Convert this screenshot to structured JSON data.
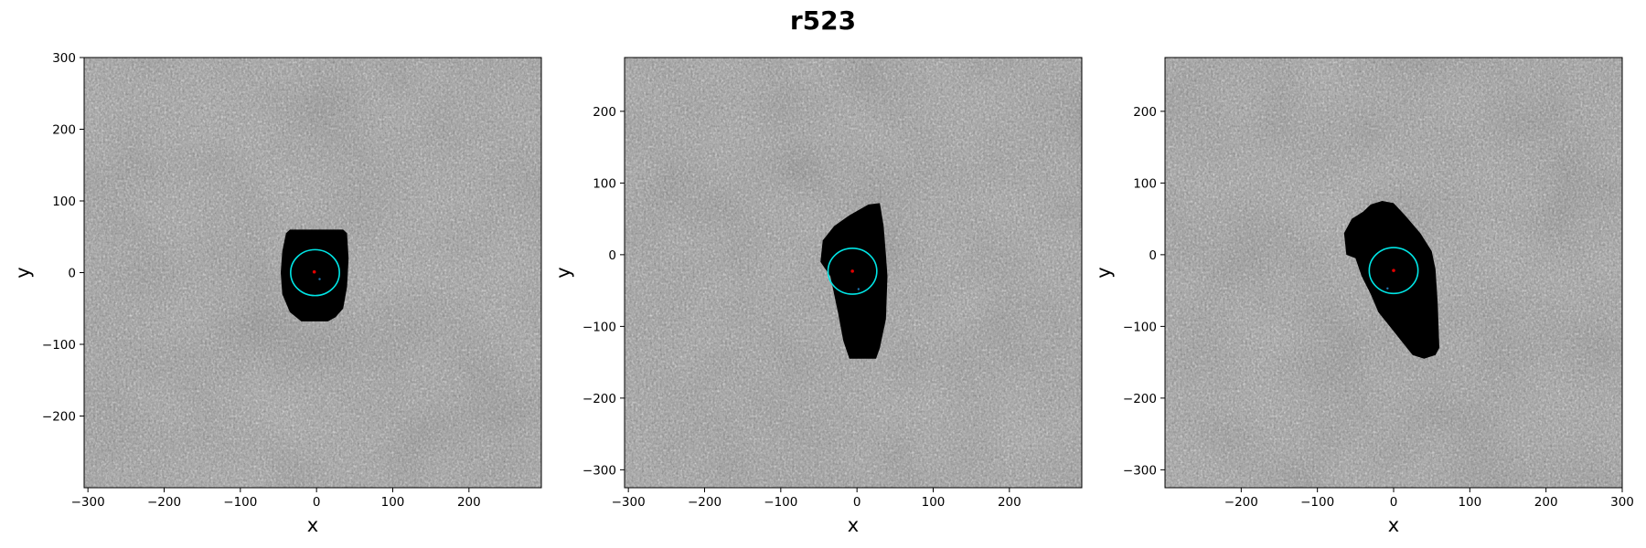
{
  "title": "r523",
  "colors": {
    "mask": "#000000",
    "circle": "#00e5e5",
    "center_dot": "#e00000",
    "alt_dot": "#1f77b4"
  },
  "chart_data": [
    {
      "type": "heatmap",
      "title": "",
      "xlabel": "x",
      "ylabel": "y",
      "xlim": [
        -305,
        295
      ],
      "ylim": [
        -300,
        300
      ],
      "xticks": [
        -300,
        -200,
        -100,
        0,
        100,
        200
      ],
      "yticks": [
        -200,
        -100,
        0,
        100,
        200,
        300
      ],
      "colormap": "gray",
      "mask_outline": [
        [
          -40,
          55
        ],
        [
          -35,
          60
        ],
        [
          35,
          60
        ],
        [
          40,
          55
        ],
        [
          42,
          20
        ],
        [
          40,
          -20
        ],
        [
          35,
          -50
        ],
        [
          25,
          -62
        ],
        [
          15,
          -68
        ],
        [
          -20,
          -68
        ],
        [
          -35,
          -55
        ],
        [
          -45,
          -30
        ],
        [
          -47,
          0
        ],
        [
          -45,
          30
        ]
      ],
      "circle": {
        "center": [
          -2,
          0
        ],
        "radius": 32
      },
      "center_point": [
        -3,
        1
      ],
      "secondary_point": [
        4,
        -9
      ]
    },
    {
      "type": "heatmap",
      "title": "",
      "xlabel": "x",
      "ylabel": "y",
      "xlim": [
        -305,
        295
      ],
      "ylim": [
        -325,
        275
      ],
      "xticks": [
        -300,
        -200,
        -100,
        0,
        100,
        200
      ],
      "yticks": [
        -300,
        -200,
        -100,
        0,
        100,
        200
      ],
      "colormap": "gray",
      "mask_outline": [
        [
          15,
          70
        ],
        [
          30,
          72
        ],
        [
          35,
          40
        ],
        [
          38,
          0
        ],
        [
          40,
          -30
        ],
        [
          38,
          -90
        ],
        [
          30,
          -130
        ],
        [
          25,
          -145
        ],
        [
          -10,
          -145
        ],
        [
          -18,
          -120
        ],
        [
          -25,
          -80
        ],
        [
          -35,
          -30
        ],
        [
          -48,
          -10
        ],
        [
          -45,
          20
        ],
        [
          -30,
          40
        ],
        [
          -10,
          55
        ]
      ],
      "circle": {
        "center": [
          -6,
          -23
        ],
        "radius": 32
      },
      "center_point": [
        -6,
        -23
      ],
      "secondary_point": [
        2,
        -48
      ]
    },
    {
      "type": "heatmap",
      "title": "",
      "xlabel": "x",
      "ylabel": "y",
      "xlim": [
        -300,
        300
      ],
      "ylim": [
        -325,
        275
      ],
      "xticks": [
        -200,
        -100,
        0,
        100,
        200,
        300
      ],
      "yticks": [
        -300,
        -200,
        -100,
        0,
        100,
        200
      ],
      "colormap": "gray",
      "mask_outline": [
        [
          -30,
          70
        ],
        [
          -15,
          75
        ],
        [
          0,
          72
        ],
        [
          15,
          55
        ],
        [
          35,
          30
        ],
        [
          50,
          5
        ],
        [
          55,
          -20
        ],
        [
          58,
          -70
        ],
        [
          60,
          -130
        ],
        [
          55,
          -140
        ],
        [
          40,
          -145
        ],
        [
          25,
          -140
        ],
        [
          10,
          -120
        ],
        [
          -5,
          -100
        ],
        [
          -20,
          -80
        ],
        [
          -30,
          -55
        ],
        [
          -42,
          -30
        ],
        [
          -50,
          -5
        ],
        [
          -62,
          0
        ],
        [
          -65,
          30
        ],
        [
          -55,
          50
        ],
        [
          -40,
          60
        ]
      ],
      "circle": {
        "center": [
          0,
          -22
        ],
        "radius": 32
      },
      "center_point": [
        0,
        -22
      ],
      "secondary_point": [
        -8,
        -47
      ]
    }
  ]
}
